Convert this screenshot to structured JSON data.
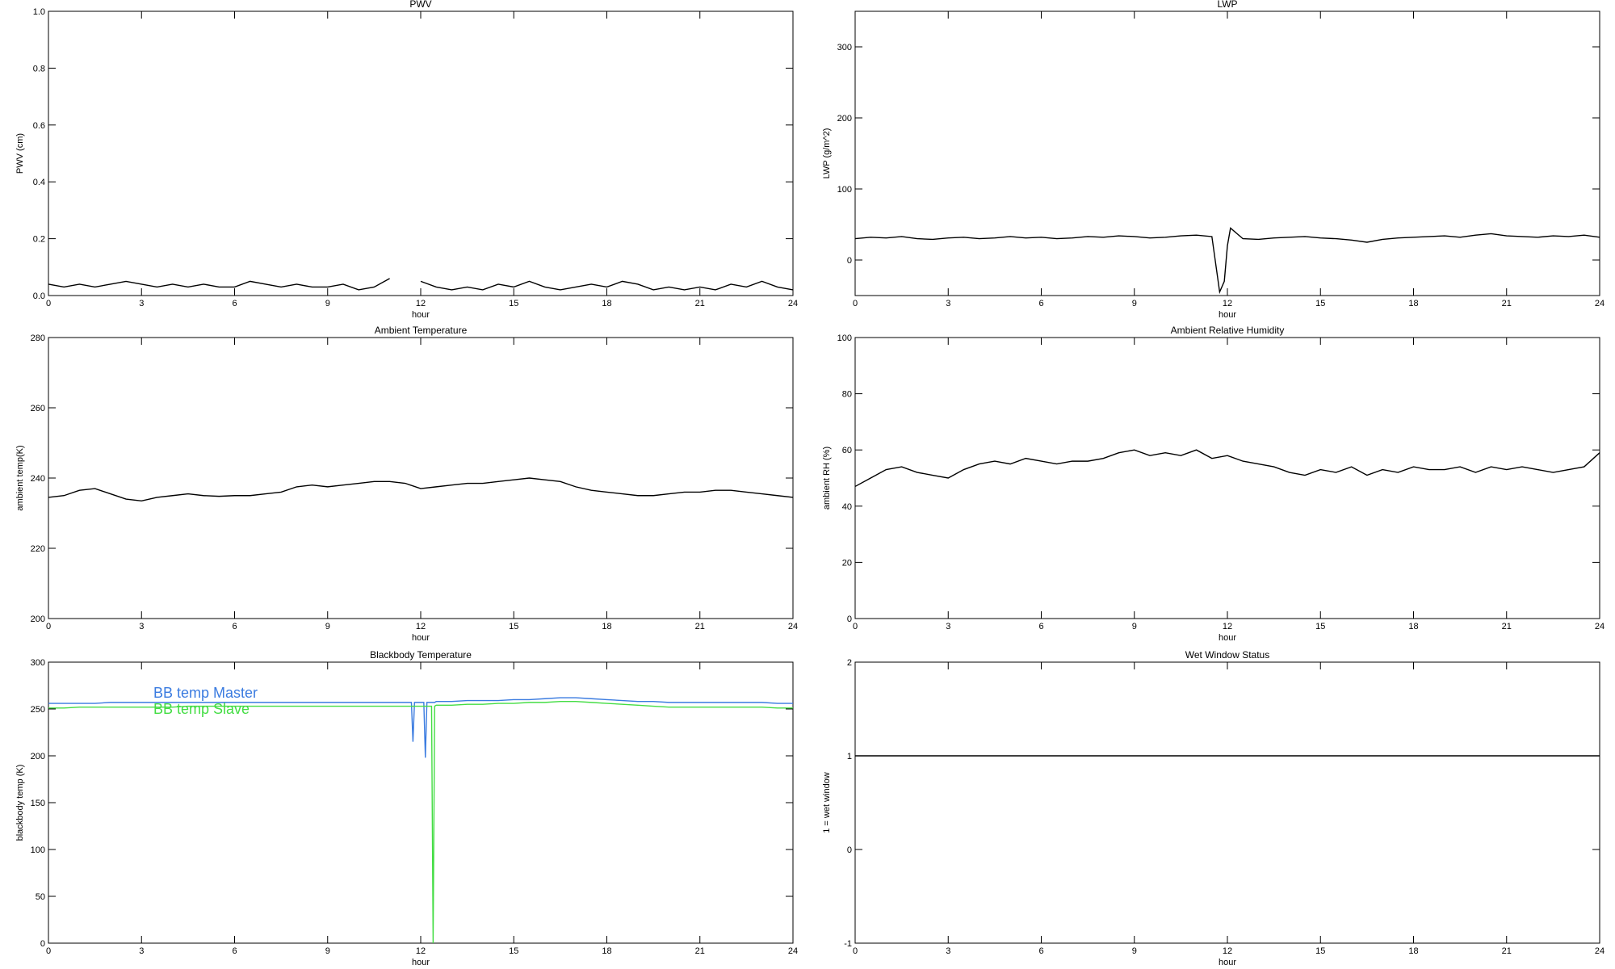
{
  "chart_data": [
    {
      "type": "line",
      "title": "PWV",
      "xlabel": "hour",
      "ylabel": "PWV (cm)",
      "xlim": [
        0,
        24
      ],
      "xticks": [
        0,
        3,
        6,
        9,
        12,
        15,
        18,
        21,
        24
      ],
      "ylim": [
        0,
        1
      ],
      "yticks": [
        {
          "value": 0,
          "label": "0.0"
        },
        0.2,
        0.4,
        0.6,
        0.8,
        {
          "value": 1,
          "label": "1.0"
        }
      ],
      "x": [
        0,
        0.5,
        1,
        1.5,
        2,
        2.5,
        3,
        3.5,
        4,
        4.5,
        5,
        5.5,
        6,
        6.5,
        7,
        7.5,
        8,
        8.5,
        9,
        9.5,
        10,
        10.5,
        11,
        11.5,
        12,
        12.5,
        13,
        13.5,
        14,
        14.5,
        15,
        15.5,
        16,
        16.5,
        17,
        17.5,
        18,
        18.5,
        19,
        19.5,
        20,
        20.5,
        21,
        21.5,
        22,
        22.5,
        23,
        23.5,
        24
      ],
      "series": [
        {
          "color": "#000000",
          "values": [
            0.04,
            0.03,
            0.04,
            0.03,
            0.04,
            0.05,
            0.04,
            0.03,
            0.04,
            0.03,
            0.04,
            0.03,
            0.03,
            0.05,
            0.04,
            0.03,
            0.04,
            0.03,
            0.03,
            0.04,
            0.02,
            0.03,
            0.06,
            null,
            0.05,
            0.03,
            0.02,
            0.03,
            0.02,
            0.04,
            0.03,
            0.05,
            0.03,
            0.02,
            0.03,
            0.04,
            0.03,
            0.05,
            0.04,
            0.02,
            0.03,
            0.02,
            0.03,
            0.02,
            0.04,
            0.03,
            0.05,
            0.03,
            0.02
          ]
        }
      ]
    },
    {
      "type": "line",
      "title": "LWP",
      "xlabel": "hour",
      "ylabel": "LWP (g/m^2)",
      "xlim": [
        0,
        24
      ],
      "xticks": [
        0,
        3,
        6,
        9,
        12,
        15,
        18,
        21,
        24
      ],
      "ylim": [
        -50,
        350
      ],
      "yticks": [
        0,
        100,
        200,
        300
      ],
      "x": [
        0,
        0.5,
        1,
        1.5,
        2,
        2.5,
        3,
        3.5,
        4,
        4.5,
        5,
        5.5,
        6,
        6.5,
        7,
        7.5,
        8,
        8.5,
        9,
        9.5,
        10,
        10.5,
        11,
        11.5,
        11.75,
        11.9,
        12,
        12.1,
        12.5,
        13,
        13.5,
        14,
        14.5,
        15,
        15.5,
        16,
        16.5,
        17,
        17.5,
        18,
        18.5,
        19,
        19.5,
        20,
        20.5,
        21,
        21.5,
        22,
        22.5,
        23,
        23.5,
        24
      ],
      "series": [
        {
          "color": "#000000",
          "values": [
            30,
            32,
            31,
            33,
            30,
            29,
            31,
            32,
            30,
            31,
            33,
            31,
            32,
            30,
            31,
            33,
            32,
            34,
            33,
            31,
            32,
            34,
            35,
            33,
            -45,
            -30,
            20,
            45,
            30,
            29,
            31,
            32,
            33,
            31,
            30,
            28,
            25,
            29,
            31,
            32,
            33,
            34,
            32,
            35,
            37,
            34,
            33,
            32,
            34,
            33,
            35,
            32
          ]
        }
      ]
    },
    {
      "type": "line",
      "title": "Ambient Temperature",
      "xlabel": "hour",
      "ylabel": "ambient temp(K)",
      "xlim": [
        0,
        24
      ],
      "xticks": [
        0,
        3,
        6,
        9,
        12,
        15,
        18,
        21,
        24
      ],
      "ylim": [
        200,
        280
      ],
      "yticks": [
        200,
        220,
        240,
        260,
        280
      ],
      "x": [
        0,
        0.5,
        1,
        1.5,
        2,
        2.5,
        3,
        3.5,
        4,
        4.5,
        5,
        5.5,
        6,
        6.5,
        7,
        7.5,
        8,
        8.5,
        9,
        9.5,
        10,
        10.5,
        11,
        11.5,
        12,
        12.5,
        13,
        13.5,
        14,
        14.5,
        15,
        15.5,
        16,
        16.5,
        17,
        17.5,
        18,
        18.5,
        19,
        19.5,
        20,
        20.5,
        21,
        21.5,
        22,
        22.5,
        23,
        23.5,
        24
      ],
      "series": [
        {
          "color": "#000000",
          "values": [
            234.5,
            235,
            236.5,
            237,
            235.5,
            234,
            233.5,
            234.5,
            235,
            235.5,
            235,
            234.8,
            235,
            235,
            235.5,
            236,
            237.5,
            238,
            237.5,
            238,
            238.5,
            239,
            239,
            238.5,
            237,
            237.5,
            238,
            238.5,
            238.5,
            239,
            239.5,
            240,
            239.5,
            239,
            237.5,
            236.5,
            236,
            235.5,
            235,
            235,
            235.5,
            236,
            236,
            236.5,
            236.5,
            236,
            235.5,
            235,
            234.5
          ]
        }
      ]
    },
    {
      "type": "line",
      "title": "Ambient Relative Humidity",
      "xlabel": "hour",
      "ylabel": "ambient RH (%)",
      "xlim": [
        0,
        24
      ],
      "xticks": [
        0,
        3,
        6,
        9,
        12,
        15,
        18,
        21,
        24
      ],
      "ylim": [
        0,
        100
      ],
      "yticks": [
        0,
        20,
        40,
        60,
        80,
        100
      ],
      "x": [
        0,
        0.5,
        1,
        1.5,
        2,
        2.5,
        3,
        3.5,
        4,
        4.5,
        5,
        5.5,
        6,
        6.5,
        7,
        7.5,
        8,
        8.5,
        9,
        9.5,
        10,
        10.5,
        11,
        11.5,
        12,
        12.5,
        13,
        13.5,
        14,
        14.5,
        15,
        15.5,
        16,
        16.5,
        17,
        17.5,
        18,
        18.5,
        19,
        19.5,
        20,
        20.5,
        21,
        21.5,
        22,
        22.5,
        23,
        23.5,
        24
      ],
      "series": [
        {
          "color": "#000000",
          "values": [
            47,
            50,
            53,
            54,
            52,
            51,
            50,
            53,
            55,
            56,
            55,
            57,
            56,
            55,
            56,
            56,
            57,
            59,
            60,
            58,
            59,
            58,
            60,
            57,
            58,
            56,
            55,
            54,
            52,
            51,
            53,
            52,
            54,
            51,
            53,
            52,
            54,
            53,
            53,
            54,
            52,
            54,
            53,
            54,
            53,
            52,
            53,
            54,
            59
          ]
        }
      ]
    },
    {
      "type": "line",
      "title": "Blackbody Temperature",
      "xlabel": "hour",
      "ylabel": "blackbody temp (K)",
      "xlim": [
        0,
        24
      ],
      "xticks": [
        0,
        3,
        6,
        9,
        12,
        15,
        18,
        21,
        24
      ],
      "ylim": [
        0,
        300
      ],
      "yticks": [
        0,
        50,
        100,
        150,
        200,
        250,
        300
      ],
      "legend": "upper-left",
      "x": [
        0,
        0.5,
        1,
        1.5,
        2,
        2.5,
        3,
        3.5,
        4,
        4.5,
        5,
        5.5,
        6,
        6.5,
        7,
        7.5,
        8,
        8.5,
        9,
        9.5,
        10,
        10.5,
        11,
        11.5,
        11.7,
        11.75,
        11.8,
        12,
        12.1,
        12.15,
        12.2,
        12.35,
        12.4,
        12.45,
        12.5,
        13,
        13.5,
        14,
        14.5,
        15,
        15.5,
        16,
        16.5,
        17,
        17.5,
        18,
        18.5,
        19,
        19.5,
        20,
        20.5,
        21,
        21.5,
        22,
        22.5,
        23,
        23.5,
        24
      ],
      "series": [
        {
          "name": "BB temp Master",
          "color": "#3a7be0",
          "values": [
            256,
            256,
            256,
            256,
            257,
            257,
            257,
            257,
            257,
            257,
            257,
            257,
            257,
            257,
            257,
            257,
            257,
            257,
            257,
            257,
            257,
            257,
            257,
            257,
            257,
            215,
            257,
            257,
            257,
            198,
            257,
            257,
            257,
            257,
            258,
            258,
            259,
            259,
            259,
            260,
            260,
            261,
            262,
            262,
            261,
            260,
            259,
            258,
            258,
            257,
            257,
            257,
            257,
            257,
            257,
            257,
            256,
            256
          ]
        },
        {
          "name": "BB temp Slave",
          "color": "#44dd44",
          "values": [
            251,
            251,
            252,
            252,
            252,
            252,
            252,
            252,
            252,
            253,
            253,
            253,
            253,
            253,
            253,
            253,
            253,
            253,
            253,
            253,
            253,
            253,
            253,
            253,
            253,
            253,
            253,
            253,
            253,
            253,
            253,
            253,
            0,
            253,
            254,
            254,
            255,
            255,
            256,
            256,
            257,
            257,
            258,
            258,
            257,
            256,
            255,
            254,
            253,
            252,
            252,
            252,
            252,
            252,
            252,
            252,
            251,
            251
          ]
        }
      ]
    },
    {
      "type": "line",
      "title": "Wet Window Status",
      "xlabel": "hour",
      "ylabel": "1 = wet window",
      "xlim": [
        0,
        24
      ],
      "xticks": [
        0,
        3,
        6,
        9,
        12,
        15,
        18,
        21,
        24
      ],
      "ylim": [
        -1,
        2
      ],
      "yticks": [
        -1,
        0,
        1,
        2
      ],
      "x": [
        0,
        24
      ],
      "series": [
        {
          "color": "#000000",
          "values": [
            1,
            1
          ]
        }
      ]
    }
  ]
}
